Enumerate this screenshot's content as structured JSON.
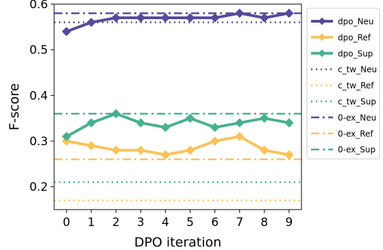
{
  "chart_data": {
    "type": "line",
    "xlabel": "DPO iteration",
    "ylabel": "F-score",
    "x": [
      0,
      1,
      2,
      3,
      4,
      5,
      6,
      7,
      8,
      9
    ],
    "xlim": [
      -0.5,
      9.5
    ],
    "ylim": [
      0.15,
      0.6
    ],
    "yticks": [
      "0.2",
      "0.3",
      "0.4",
      "0.5",
      "0.6"
    ],
    "xticks": [
      "0",
      "1",
      "2",
      "3",
      "4",
      "5",
      "6",
      "7",
      "8",
      "9"
    ],
    "grid": false,
    "legend_position": "outside-right",
    "series": [
      {
        "name": "dpo_Neu",
        "style": "line-marker",
        "color": "#574a9a",
        "values": [
          0.54,
          0.56,
          0.57,
          0.57,
          0.57,
          0.57,
          0.57,
          0.58,
          0.57,
          0.58
        ]
      },
      {
        "name": "dpo_Ref",
        "style": "line-marker",
        "color": "#f9c359",
        "values": [
          0.3,
          0.29,
          0.28,
          0.28,
          0.27,
          0.28,
          0.3,
          0.31,
          0.28,
          0.27
        ]
      },
      {
        "name": "dpo_Sup",
        "style": "line-marker",
        "color": "#48b08f",
        "values": [
          0.31,
          0.34,
          0.36,
          0.34,
          0.33,
          0.35,
          0.33,
          0.34,
          0.35,
          0.34
        ]
      },
      {
        "name": "c_tw_Neu",
        "style": "dotted",
        "color": "#574a9a",
        "value": 0.56
      },
      {
        "name": "c_tw_Ref",
        "style": "dotted",
        "color": "#f9c359",
        "value": 0.17
      },
      {
        "name": "c_tw_Sup",
        "style": "dotted",
        "color": "#48b08f",
        "value": 0.21
      },
      {
        "name": "0-ex_Neu",
        "style": "dashdot",
        "color": "#574a9a",
        "value": 0.58
      },
      {
        "name": "0-ex_Ref",
        "style": "dashdot",
        "color": "#f9c359",
        "value": 0.26
      },
      {
        "name": "0-ex_Sup",
        "style": "dashdot",
        "color": "#48b08f",
        "value": 0.36
      }
    ]
  }
}
